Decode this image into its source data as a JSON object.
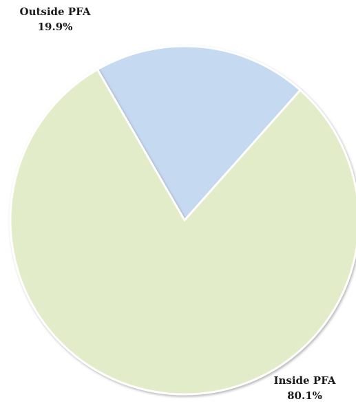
{
  "chart_data": {
    "type": "pie",
    "title": "",
    "slices": [
      {
        "label": "Outside PFA",
        "value": 19.9,
        "value_label": "19.9%",
        "color": "#c5d9f1"
      },
      {
        "label": "Inside PFA",
        "value": 80.1,
        "value_label": "80.1%",
        "color": "#e3ecc9"
      }
    ],
    "start_angle_deg": 120,
    "direction": "clockwise",
    "edge_color": "#ffffff",
    "legend": "none"
  }
}
